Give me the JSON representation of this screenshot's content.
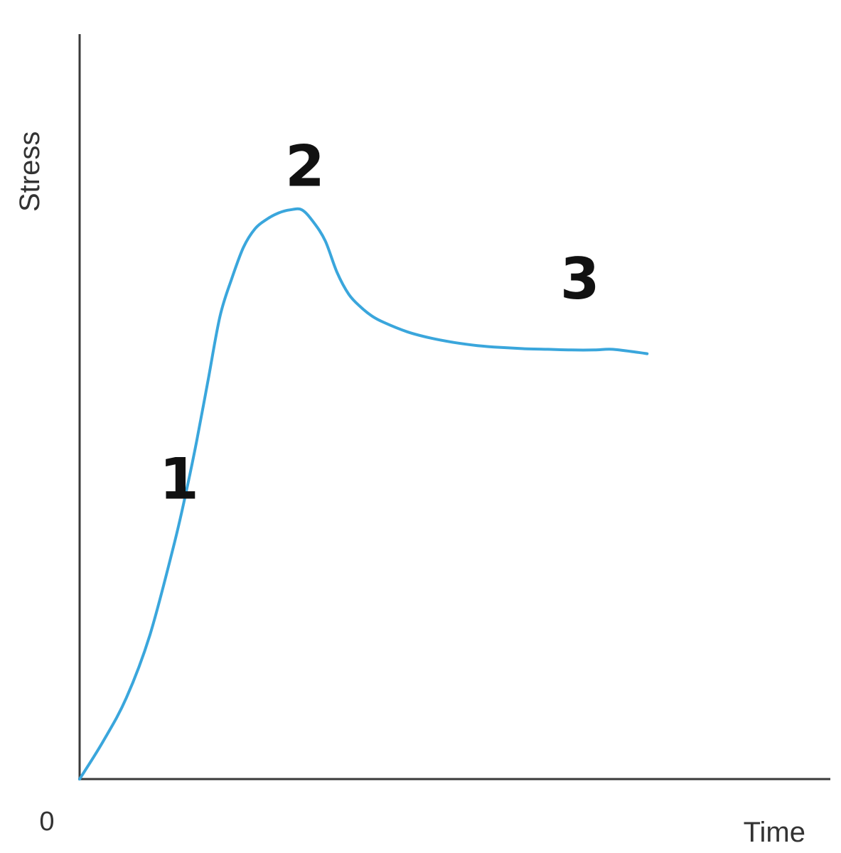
{
  "chart_data": {
    "type": "line",
    "title": "",
    "xlabel": "Time",
    "ylabel": "Stress",
    "origin_label": "0",
    "xlim": [
      0,
      100
    ],
    "ylim": [
      0,
      100
    ],
    "grid": false,
    "ticks": false,
    "series": [
      {
        "color": "#3aa6dc",
        "x": [
          0,
          4,
          8,
          12,
          16,
          18,
          20,
          22,
          24,
          26,
          28,
          30,
          32,
          34,
          36,
          38,
          40,
          42,
          44,
          46,
          48,
          50,
          52,
          56,
          60,
          64,
          68,
          72,
          76,
          80,
          84,
          88,
          91,
          95.5,
          97
        ],
        "y": [
          0,
          6,
          13,
          23,
          37,
          45,
          54,
          64,
          74,
          80,
          85,
          88,
          89.5,
          90.5,
          91,
          91,
          89,
          86,
          81,
          77.5,
          75.5,
          74,
          73,
          71.5,
          70.5,
          69.8,
          69.3,
          69,
          68.8,
          68.7,
          68.6,
          68.6,
          68.7,
          68.2,
          68
        ]
      }
    ],
    "annotations": [
      {
        "text": "1",
        "x": 17,
        "y": 48
      },
      {
        "text": "2",
        "x": 38.5,
        "y": 98
      },
      {
        "text": "3",
        "x": 85.5,
        "y": 80
      }
    ]
  }
}
